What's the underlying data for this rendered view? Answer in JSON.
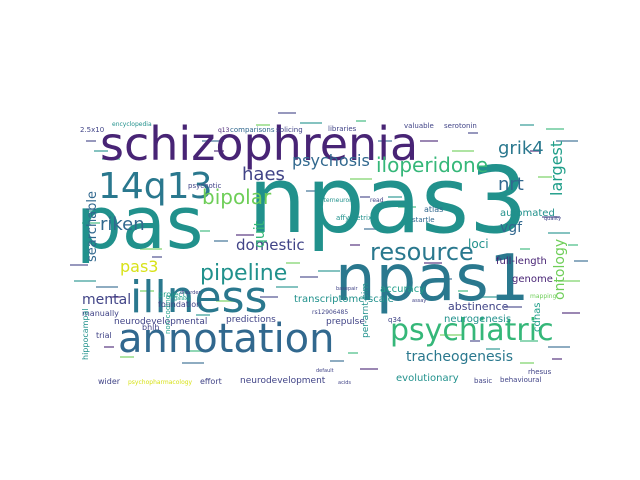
{
  "palette": {
    "background": "#ffffff",
    "dark_purple": "#482475",
    "purple": "#414487",
    "blue": "#31688e",
    "teal_blue": "#2a788e",
    "teal": "#21918c",
    "green_teal": "#1f9e89",
    "green": "#35b779",
    "light_green": "#6ece58",
    "yellow_green": "#b5de2b",
    "yellow": "#d8e219"
  },
  "words": [
    {
      "text": "npas3",
      "color": "teal",
      "rot": 0
    },
    {
      "text": "pas",
      "color": "teal",
      "rot": 0
    },
    {
      "text": "npas1",
      "color": "teal_blue",
      "rot": 0
    },
    {
      "text": "schizophrenia",
      "color": "dark_purple",
      "rot": 0
    },
    {
      "text": "annotation",
      "color": "blue",
      "rot": 0
    },
    {
      "text": "illness",
      "color": "teal_blue",
      "rot": 0
    },
    {
      "text": "14q13",
      "color": "teal_blue",
      "rot": 0
    },
    {
      "text": "psychiatric",
      "color": "green",
      "rot": 0
    },
    {
      "text": "resource",
      "color": "teal_blue",
      "rot": 0
    },
    {
      "text": "pipeline",
      "color": "teal",
      "rot": 0
    },
    {
      "text": "iloperidone",
      "color": "green",
      "rot": 0
    },
    {
      "text": "bipolar",
      "color": "light_green",
      "rot": 0
    },
    {
      "text": "riken",
      "color": "blue",
      "rot": 0
    },
    {
      "text": "haes",
      "color": "purple",
      "rot": 0
    },
    {
      "text": "psychosis",
      "color": "blue",
      "rot": 0
    },
    {
      "text": "grik4",
      "color": "teal_blue",
      "rot": 0
    },
    {
      "text": "nrt",
      "color": "blue",
      "rot": 0
    },
    {
      "text": "pas3",
      "color": "yellow",
      "rot": 0
    },
    {
      "text": "domestic",
      "color": "purple",
      "rot": 0
    },
    {
      "text": "tracheogenesis",
      "color": "teal_blue",
      "rot": 0
    },
    {
      "text": "largest",
      "color": "green_teal",
      "rot": -90
    },
    {
      "text": "searchable",
      "color": "blue",
      "rot": -90
    },
    {
      "text": "ontology",
      "color": "light_green",
      "rot": -90
    },
    {
      "text": "quit",
      "color": "green",
      "rot": -90
    },
    {
      "text": "vgf",
      "color": "blue",
      "rot": 0
    },
    {
      "text": "mental",
      "color": "purple",
      "rot": 0
    },
    {
      "text": "loci",
      "color": "teal",
      "rot": 0
    },
    {
      "text": "abstinence",
      "color": "purple",
      "rot": 0
    },
    {
      "text": "neurogenesis",
      "color": "teal",
      "rot": 0
    },
    {
      "text": "full-length",
      "color": "dark_purple",
      "rot": 0
    },
    {
      "text": "accuracy",
      "color": "green_teal",
      "rot": 0
    },
    {
      "text": "transcriptome-scale",
      "color": "teal",
      "rot": 0
    },
    {
      "text": "automated",
      "color": "teal",
      "rot": 0
    },
    {
      "text": "genome",
      "color": "dark_purple",
      "rot": 0
    },
    {
      "text": "evolutionary",
      "color": "teal",
      "rot": 0
    },
    {
      "text": "neurodevelopmental",
      "color": "purple",
      "rot": 0
    },
    {
      "text": "neurodevelopment",
      "color": "purple",
      "rot": 0
    },
    {
      "text": "predictions",
      "color": "purple",
      "rot": 0
    },
    {
      "text": "prepulse",
      "color": "purple",
      "rot": 0
    },
    {
      "text": "manually",
      "color": "purple",
      "rot": 0
    },
    {
      "text": "trial",
      "color": "purple",
      "rot": 0
    },
    {
      "text": "bhlh",
      "color": "purple",
      "rot": 0
    },
    {
      "text": "project",
      "color": "green_teal",
      "rot": 0
    },
    {
      "text": "foundation",
      "color": "purple",
      "rot": 0
    },
    {
      "text": "hippocampal",
      "color": "teal",
      "rot": -90
    },
    {
      "text": "wider",
      "color": "purple",
      "rot": 0
    },
    {
      "text": "effort",
      "color": "purple",
      "rot": 0
    },
    {
      "text": "cdnas",
      "color": "green_teal",
      "rot": -90
    },
    {
      "text": "basic",
      "color": "purple",
      "rot": 0
    },
    {
      "text": "behavioural",
      "color": "purple",
      "rot": 0
    },
    {
      "text": "rhesus",
      "color": "purple",
      "rot": 0
    },
    {
      "text": "atlas",
      "color": "blue",
      "rot": 0
    },
    {
      "text": "startle",
      "color": "blue",
      "rot": 0
    },
    {
      "text": "affymetrix",
      "color": "teal",
      "rot": 0
    },
    {
      "text": "comparisons",
      "color": "blue",
      "rot": 0
    },
    {
      "text": "splicing",
      "color": "purple",
      "rot": 0
    },
    {
      "text": "libraries",
      "color": "purple",
      "rot": 0
    },
    {
      "text": "valuable",
      "color": "purple",
      "rot": 0
    },
    {
      "text": "serotonin",
      "color": "purple",
      "rot": 0
    },
    {
      "text": "encyclopedia",
      "color": "teal",
      "rot": 0
    },
    {
      "text": "2.5x10",
      "color": "purple",
      "rot": 0
    },
    {
      "text": "q13",
      "color": "dark_purple",
      "rot": 0
    },
    {
      "text": "q34",
      "color": "purple",
      "rot": 0
    },
    {
      "text": "per-arnt-sim",
      "color": "teal",
      "rot": -90
    },
    {
      "text": "non-coding",
      "color": "green_teal",
      "rot": -90
    },
    {
      "text": "psychotic",
      "color": "purple",
      "rot": 0
    },
    {
      "text": "interneuron",
      "color": "teal",
      "rot": 0
    },
    {
      "text": "rs12906485",
      "color": "purple",
      "rot": 0
    },
    {
      "text": "psychopharmacology",
      "color": "yellow",
      "rot": 0
    },
    {
      "text": "mapping",
      "color": "light_green",
      "rot": 0
    },
    {
      "text": "read",
      "color": "purple",
      "rot": 0
    },
    {
      "text": "default",
      "color": "purple",
      "rot": 0
    },
    {
      "text": "acids",
      "color": "purple",
      "rot": 0
    },
    {
      "text": "quality",
      "color": "purple",
      "rot": 0
    },
    {
      "text": "disorder",
      "color": "purple",
      "rot": 0
    },
    {
      "text": "galaxy",
      "color": "green_teal",
      "rot": 0
    },
    {
      "text": "basepair",
      "color": "purple",
      "rot": 0
    },
    {
      "text": "assay",
      "color": "purple",
      "rot": 0
    }
  ]
}
